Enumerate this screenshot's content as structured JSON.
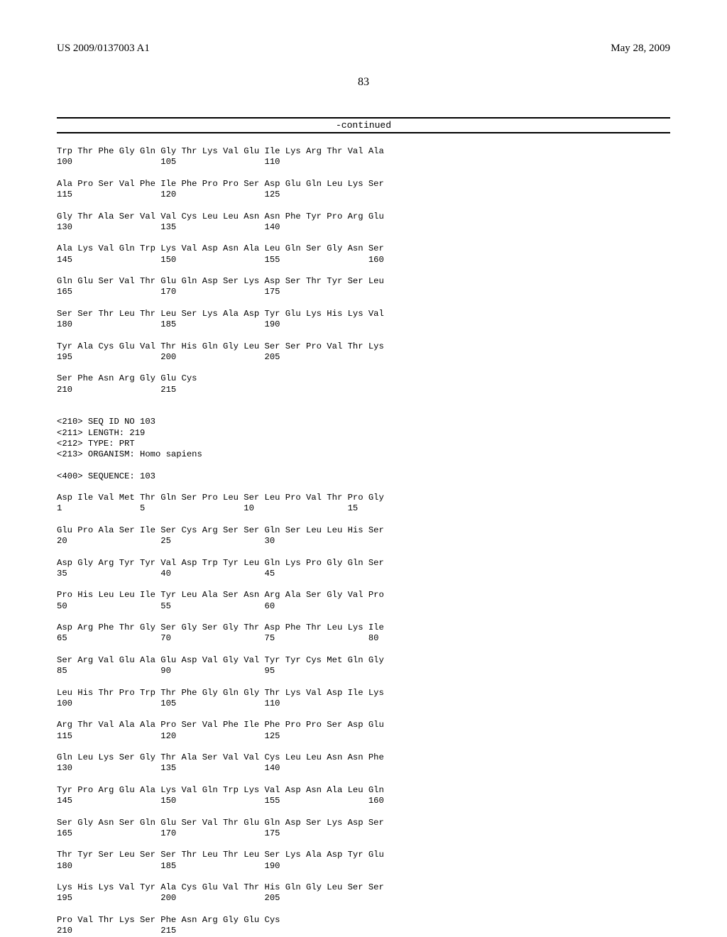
{
  "header": {
    "left": "US 2009/0137003 A1",
    "right": "May 28, 2009"
  },
  "page_number": "83",
  "continued_label": "-continued",
  "sequence_block": "Trp Thr Phe Gly Gln Gly Thr Lys Val Glu Ile Lys Arg Thr Val Ala\n100                 105                 110\n\nAla Pro Ser Val Phe Ile Phe Pro Pro Ser Asp Glu Gln Leu Lys Ser\n115                 120                 125\n\nGly Thr Ala Ser Val Val Cys Leu Leu Asn Asn Phe Tyr Pro Arg Glu\n130                 135                 140\n\nAla Lys Val Gln Trp Lys Val Asp Asn Ala Leu Gln Ser Gly Asn Ser\n145                 150                 155                 160\n\nGln Glu Ser Val Thr Glu Gln Asp Ser Lys Asp Ser Thr Tyr Ser Leu\n165                 170                 175\n\nSer Ser Thr Leu Thr Leu Ser Lys Ala Asp Tyr Glu Lys His Lys Val\n180                 185                 190\n\nTyr Ala Cys Glu Val Thr His Gln Gly Leu Ser Ser Pro Val Thr Lys\n195                 200                 205\n\nSer Phe Asn Arg Gly Glu Cys\n210                 215\n\n\n<210> SEQ ID NO 103\n<211> LENGTH: 219\n<212> TYPE: PRT\n<213> ORGANISM: Homo sapiens\n\n<400> SEQUENCE: 103\n\nAsp Ile Val Met Thr Gln Ser Pro Leu Ser Leu Pro Val Thr Pro Gly\n1               5                   10                  15\n\nGlu Pro Ala Ser Ile Ser Cys Arg Ser Ser Gln Ser Leu Leu His Ser\n20                  25                  30\n\nAsp Gly Arg Tyr Tyr Val Asp Trp Tyr Leu Gln Lys Pro Gly Gln Ser\n35                  40                  45\n\nPro His Leu Leu Ile Tyr Leu Ala Ser Asn Arg Ala Ser Gly Val Pro\n50                  55                  60\n\nAsp Arg Phe Thr Gly Ser Gly Ser Gly Thr Asp Phe Thr Leu Lys Ile\n65                  70                  75                  80\n\nSer Arg Val Glu Ala Glu Asp Val Gly Val Tyr Tyr Cys Met Gln Gly\n85                  90                  95\n\nLeu His Thr Pro Trp Thr Phe Gly Gln Gly Thr Lys Val Asp Ile Lys\n100                 105                 110\n\nArg Thr Val Ala Ala Pro Ser Val Phe Ile Phe Pro Pro Ser Asp Glu\n115                 120                 125\n\nGln Leu Lys Ser Gly Thr Ala Ser Val Val Cys Leu Leu Asn Asn Phe\n130                 135                 140\n\nTyr Pro Arg Glu Ala Lys Val Gln Trp Lys Val Asp Asn Ala Leu Gln\n145                 150                 155                 160\n\nSer Gly Asn Ser Gln Glu Ser Val Thr Glu Gln Asp Ser Lys Asp Ser\n165                 170                 175\n\nThr Tyr Ser Leu Ser Ser Thr Leu Thr Leu Ser Lys Ala Asp Tyr Glu\n180                 185                 190\n\nLys His Lys Val Tyr Ala Cys Glu Val Thr His Gln Gly Leu Ser Ser\n195                 200                 205\n\nPro Val Thr Lys Ser Phe Asn Arg Gly Glu Cys\n210                 215"
}
